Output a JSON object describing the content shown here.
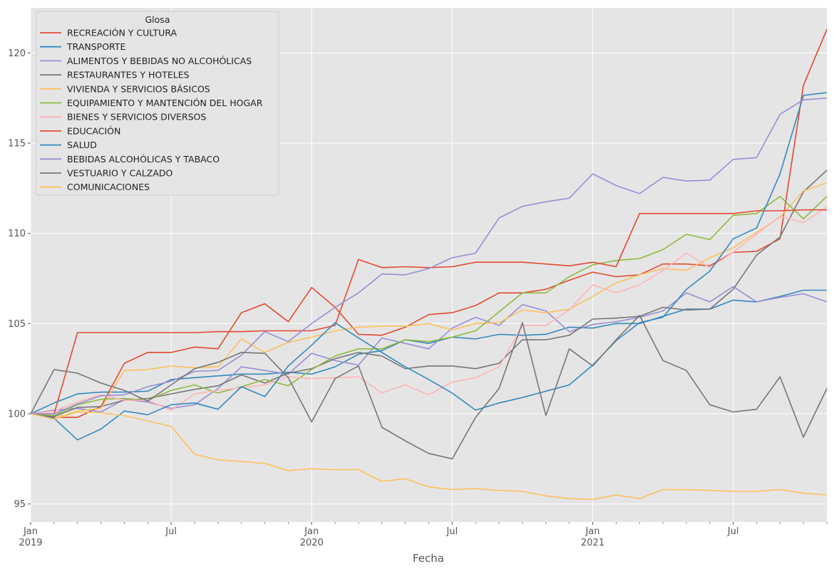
{
  "chart_data": {
    "type": "line",
    "xlabel": "Fecha",
    "ylabel": "",
    "ylim": [
      94,
      122.5
    ],
    "xlim": [
      "2019-01",
      "2021-11"
    ],
    "grid": true,
    "legend_title": "Glosa",
    "legend_position": "top-left",
    "yticks": [
      95,
      100,
      105,
      110,
      115,
      120
    ],
    "xticks": [
      {
        "date": "2019-01",
        "label": "Jan",
        "sublabel": "2019"
      },
      {
        "date": "2019-07",
        "label": "Jul",
        "sublabel": ""
      },
      {
        "date": "2020-01",
        "label": "Jan",
        "sublabel": "2020"
      },
      {
        "date": "2020-07",
        "label": "Jul",
        "sublabel": ""
      },
      {
        "date": "2021-01",
        "label": "Jan",
        "sublabel": "2021"
      },
      {
        "date": "2021-07",
        "label": "Jul",
        "sublabel": ""
      }
    ],
    "x": [
      "2019-01",
      "2019-02",
      "2019-03",
      "2019-04",
      "2019-05",
      "2019-06",
      "2019-07",
      "2019-08",
      "2019-09",
      "2019-10",
      "2019-11",
      "2019-12",
      "2020-01",
      "2020-02",
      "2020-03",
      "2020-04",
      "2020-05",
      "2020-06",
      "2020-07",
      "2020-08",
      "2020-09",
      "2020-10",
      "2020-11",
      "2020-12",
      "2021-01",
      "2021-02",
      "2021-03",
      "2021-04",
      "2021-05",
      "2021-06",
      "2021-07",
      "2021-08",
      "2021-09",
      "2021-10",
      "2021-11"
    ],
    "series": [
      {
        "name": "RECREACIÓN Y CULTURA",
        "color": "#E24A33",
        "values": [
          100,
          99.8,
          99.8,
          100.4,
          102.8,
          103.4,
          103.4,
          103.7,
          103.6,
          105.6,
          106.1,
          105.1,
          107.0,
          105.9,
          104.4,
          104.35,
          104.8,
          105.5,
          105.6,
          106.0,
          106.7,
          106.7,
          106.9,
          107.4,
          107.85,
          107.6,
          107.7,
          108.3,
          108.3,
          108.2,
          108.95,
          109.0,
          109.7,
          118.2,
          121.3
        ]
      },
      {
        "name": "TRANSPORTE",
        "color": "#348ABD",
        "values": [
          100,
          100.6,
          101.1,
          101.2,
          101.2,
          101.25,
          101.9,
          102.0,
          102.1,
          102.2,
          102.2,
          102.3,
          102.2,
          102.6,
          103.3,
          103.5,
          104.1,
          103.9,
          104.25,
          104.15,
          104.4,
          104.35,
          104.4,
          104.8,
          104.75,
          105.0,
          105.0,
          105.4,
          105.8,
          105.8,
          106.3,
          106.2,
          106.5,
          106.85,
          106.85
        ]
      },
      {
        "name": "ALIMENTOS Y BEBIDAS NO ALCOHÓLICAS",
        "color": "#988ED5",
        "values": [
          100,
          100.2,
          100.3,
          100.1,
          100.8,
          100.65,
          100.3,
          100.5,
          101.4,
          102.6,
          102.4,
          102.2,
          103.35,
          102.95,
          102.7,
          104.2,
          103.9,
          103.6,
          104.75,
          105.35,
          104.9,
          106.05,
          105.7,
          104.55,
          104.95,
          105.1,
          105.35,
          105.7,
          106.7,
          106.2,
          107.05,
          106.2,
          106.45,
          106.65,
          106.2
        ]
      },
      {
        "name": "RESTAURANTES Y HOTELES",
        "color": "#777777",
        "values": [
          100,
          99.85,
          100.35,
          100.4,
          100.75,
          100.85,
          101.1,
          101.35,
          101.55,
          102.15,
          101.7,
          102.25,
          102.5,
          103.05,
          103.4,
          103.2,
          102.5,
          102.65,
          102.65,
          102.5,
          102.8,
          104.1,
          104.1,
          104.35,
          105.25,
          105.3,
          105.4,
          105.9,
          105.75,
          105.8,
          106.9,
          108.8,
          109.8,
          112.3,
          113.5
        ]
      },
      {
        "name": "VIVIENDA Y SERVICIOS BÁSICOS",
        "color": "#FBC15E",
        "values": [
          100,
          99.75,
          100.15,
          100.3,
          102.4,
          102.45,
          102.65,
          102.55,
          102.6,
          104.15,
          103.4,
          103.95,
          104.25,
          104.6,
          104.8,
          104.85,
          104.85,
          105.0,
          104.65,
          105.0,
          105.05,
          105.75,
          105.6,
          105.8,
          106.5,
          107.25,
          107.7,
          108.05,
          107.95,
          108.65,
          109.2,
          110.05,
          110.9,
          112.35,
          112.8
        ]
      },
      {
        "name": "EQUIPAMIENTO Y MANTENCIÓN DEL HOGAR",
        "color": "#8EBA42",
        "values": [
          100,
          99.9,
          100.5,
          100.8,
          100.85,
          100.75,
          101.3,
          101.6,
          101.15,
          101.5,
          101.9,
          101.55,
          102.45,
          103.2,
          103.6,
          103.6,
          104.1,
          104.0,
          104.25,
          104.6,
          105.65,
          106.7,
          106.7,
          107.6,
          108.25,
          108.5,
          108.6,
          109.1,
          109.95,
          109.65,
          111.0,
          111.1,
          112.05,
          110.8,
          112.05
        ]
      },
      {
        "name": "BIENES Y SERVICIOS DIVERSOS",
        "color": "#FFB5B8",
        "values": [
          100,
          100.15,
          100.65,
          101.05,
          100.75,
          100.75,
          100.2,
          101.1,
          101.3,
          101.45,
          101.6,
          102.05,
          101.95,
          102.0,
          102.05,
          101.15,
          101.6,
          101.05,
          101.75,
          102.0,
          102.6,
          104.9,
          104.9,
          105.75,
          107.15,
          106.7,
          107.15,
          107.95,
          108.9,
          108.1,
          108.95,
          109.95,
          110.95,
          110.6,
          111.45
        ]
      },
      {
        "name": "EDUCACIÓN",
        "color": "#E24A33",
        "values": [
          100,
          100.0,
          104.5,
          104.5,
          104.5,
          104.5,
          104.5,
          104.5,
          104.55,
          104.55,
          104.6,
          104.6,
          104.6,
          104.9,
          108.55,
          108.1,
          108.15,
          108.1,
          108.15,
          108.4,
          108.4,
          108.4,
          108.3,
          108.2,
          108.4,
          108.15,
          111.1,
          111.1,
          111.1,
          111.1,
          111.1,
          111.25,
          111.25,
          111.3,
          111.3
        ]
      },
      {
        "name": "SALUD",
        "color": "#348ABD",
        "values": [
          100,
          99.75,
          98.55,
          99.15,
          100.15,
          99.95,
          100.5,
          100.6,
          100.25,
          101.5,
          100.95,
          102.65,
          103.8,
          105.05,
          104.2,
          103.4,
          102.6,
          101.9,
          101.15,
          100.2,
          100.6,
          100.9,
          101.25,
          101.6,
          102.7,
          104.05,
          105.05,
          105.35,
          106.9,
          107.9,
          109.7,
          110.3,
          113.3,
          117.65,
          117.8
        ]
      },
      {
        "name": "BEBIDAS ALCOHÓLICAS Y TABACO",
        "color": "#988ED5",
        "values": [
          100,
          100.0,
          100.55,
          101.0,
          101.05,
          101.5,
          101.8,
          102.35,
          102.4,
          103.25,
          104.55,
          104.0,
          105.0,
          105.9,
          106.7,
          107.75,
          107.7,
          108.05,
          108.65,
          108.9,
          110.85,
          111.5,
          111.75,
          111.95,
          113.3,
          112.65,
          112.2,
          113.1,
          112.9,
          112.95,
          114.1,
          114.2,
          116.6,
          117.4,
          117.5
        ]
      },
      {
        "name": "VESTUARIO Y CALZADO",
        "color": "#777777",
        "values": [
          100,
          102.45,
          102.25,
          101.7,
          101.3,
          100.7,
          101.6,
          102.5,
          102.85,
          103.4,
          103.35,
          102.0,
          99.55,
          101.95,
          102.65,
          99.25,
          98.5,
          97.8,
          97.5,
          99.8,
          101.4,
          105.05,
          99.9,
          103.6,
          102.65,
          104.1,
          105.45,
          102.95,
          102.4,
          100.5,
          100.1,
          100.25,
          102.05,
          98.7,
          101.4
        ]
      },
      {
        "name": "COMUNICACIONES",
        "color": "#FBC15E",
        "values": [
          100,
          99.7,
          100.1,
          100.05,
          99.9,
          99.6,
          99.3,
          97.75,
          97.45,
          97.35,
          97.25,
          96.85,
          96.95,
          96.9,
          96.9,
          96.25,
          96.4,
          95.95,
          95.8,
          95.85,
          95.75,
          95.7,
          95.45,
          95.3,
          95.25,
          95.5,
          95.3,
          95.8,
          95.8,
          95.75,
          95.7,
          95.7,
          95.8,
          95.6,
          95.5
        ]
      }
    ]
  }
}
